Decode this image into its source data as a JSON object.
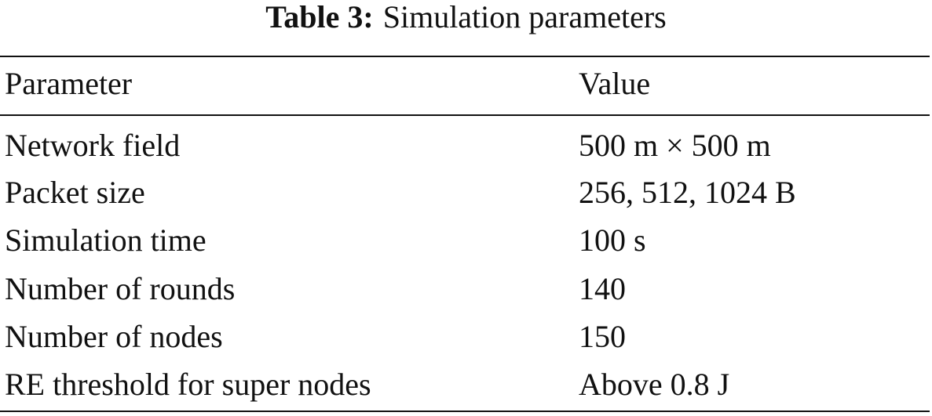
{
  "caption": {
    "label": "Table 3:",
    "title": "Simulation parameters"
  },
  "table": {
    "headers": [
      "Parameter",
      "Value"
    ],
    "rows": [
      [
        "Network field",
        "500 m × 500 m"
      ],
      [
        "Packet size",
        "256, 512, 1024 B"
      ],
      [
        "Simulation time",
        "100 s"
      ],
      [
        "Number of rounds",
        "140"
      ],
      [
        "Number of nodes",
        "150"
      ],
      [
        "RE threshold for super nodes",
        "Above 0.8 J"
      ]
    ]
  }
}
